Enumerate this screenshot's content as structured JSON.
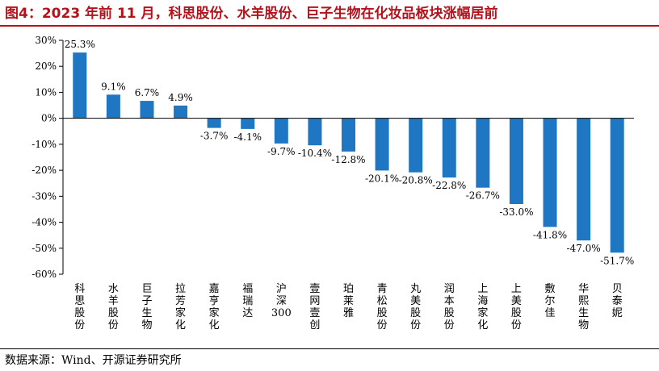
{
  "header": {
    "title": "图4：2023 年前 11 月，科思股份、水羊股份、巨子生物在化妆品板块涨幅居前"
  },
  "footer": {
    "source": "数据来源：Wind、开源证券研究所"
  },
  "colors": {
    "bar": "#1f77c4",
    "title": "#b5121b",
    "axis": "#000000"
  },
  "chart_data": {
    "type": "bar",
    "title": "",
    "xlabel": "",
    "ylabel": "",
    "ylim": [
      -60,
      30
    ],
    "y_ticks": [
      30,
      20,
      10,
      0,
      -10,
      -20,
      -30,
      -40,
      -50,
      -60
    ],
    "y_tick_labels": [
      "30%",
      "20%",
      "10%",
      "0%",
      "-10%",
      "-20%",
      "-30%",
      "-40%",
      "-50%",
      "-60%"
    ],
    "grid": false,
    "legend": "none",
    "categories": [
      "科思股份",
      "水羊股份",
      "巨子生物",
      "拉芳家化",
      "嘉亨家化",
      "福瑞达",
      "沪深300",
      "壹网壹创",
      "珀莱雅",
      "青松股份",
      "丸美股份",
      "润本股份",
      "上海家化",
      "上美股份",
      "敷尔佳",
      "华熙生物",
      "贝泰妮"
    ],
    "values": [
      25.3,
      9.1,
      6.7,
      4.9,
      -3.7,
      -4.1,
      -9.7,
      -10.4,
      -12.8,
      -20.1,
      -20.8,
      -22.8,
      -26.7,
      -33.0,
      -41.8,
      -47.0,
      -51.7
    ],
    "data_labels": [
      "25.3%",
      "9.1%",
      "6.7%",
      "4.9%",
      "-3.7%",
      "-4.1%",
      "-9.7%",
      "-10.4%",
      "-12.8%",
      "-20.1%",
      "-20.8%",
      "-22.8%",
      "-26.7%",
      "-33.0%",
      "-41.8%",
      "-47.0%",
      "-51.7%"
    ]
  }
}
